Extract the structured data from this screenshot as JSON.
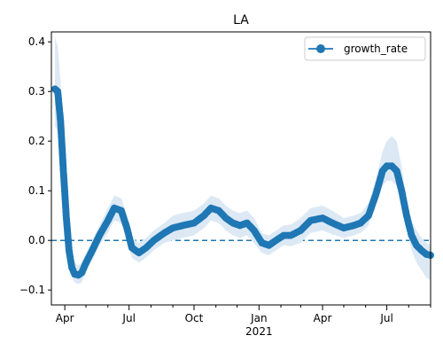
{
  "chart_data": {
    "type": "line",
    "title": "LA",
    "xlabel": "",
    "ylabel": "",
    "x_range": [
      "2020-03-13",
      "2021-09-01"
    ],
    "ylim": [
      -0.13,
      0.42
    ],
    "y_ticks": [
      -0.1,
      0.0,
      0.1,
      0.2,
      0.3,
      0.4
    ],
    "y_tick_labels": [
      "−0.1",
      "0.0",
      "0.1",
      "0.2",
      "0.3",
      "0.4"
    ],
    "x_ticks": [
      {
        "date": "2020-04-01",
        "label": "Apr"
      },
      {
        "date": "2020-07-01",
        "label": "Jul"
      },
      {
        "date": "2020-10-01",
        "label": "Oct"
      },
      {
        "date": "2021-01-01",
        "label": "Jan"
      },
      {
        "date": "2021-04-01",
        "label": "Apr"
      },
      {
        "date": "2021-07-01",
        "label": "Jul"
      }
    ],
    "x_year_label": {
      "date": "2021-01-01",
      "label": "2021"
    },
    "legend": {
      "placement": "top-right",
      "entries": [
        "growth_rate"
      ]
    },
    "grid": false,
    "reference_line": {
      "y": 0.0,
      "style": "dashed"
    },
    "series_color": "#1f77b4",
    "band_color": "#dce9f5",
    "series": [
      {
        "name": "growth_rate",
        "x": [
          "2020-03-18",
          "2020-03-22",
          "2020-03-26",
          "2020-03-30",
          "2020-04-03",
          "2020-04-07",
          "2020-04-11",
          "2020-04-15",
          "2020-04-20",
          "2020-04-25",
          "2020-05-01",
          "2020-05-10",
          "2020-05-20",
          "2020-06-01",
          "2020-06-10",
          "2020-06-20",
          "2020-06-28",
          "2020-07-05",
          "2020-07-15",
          "2020-07-25",
          "2020-08-05",
          "2020-08-20",
          "2020-09-01",
          "2020-09-15",
          "2020-10-01",
          "2020-10-15",
          "2020-10-25",
          "2020-11-05",
          "2020-11-15",
          "2020-11-25",
          "2020-12-05",
          "2020-12-15",
          "2020-12-25",
          "2021-01-05",
          "2021-01-15",
          "2021-01-25",
          "2021-02-05",
          "2021-02-15",
          "2021-03-01",
          "2021-03-15",
          "2021-04-01",
          "2021-04-15",
          "2021-05-01",
          "2021-05-15",
          "2021-05-25",
          "2021-06-05",
          "2021-06-15",
          "2021-06-25",
          "2021-07-01",
          "2021-07-08",
          "2021-07-15",
          "2021-07-22",
          "2021-07-29",
          "2021-08-05",
          "2021-08-12",
          "2021-08-19",
          "2021-08-26",
          "2021-09-01"
        ],
        "y": [
          0.305,
          0.3,
          0.24,
          0.14,
          0.05,
          -0.02,
          -0.055,
          -0.068,
          -0.07,
          -0.065,
          -0.045,
          -0.02,
          0.01,
          0.04,
          0.065,
          0.06,
          0.025,
          -0.015,
          -0.025,
          -0.015,
          0.0,
          0.015,
          0.025,
          0.03,
          0.035,
          0.05,
          0.065,
          0.06,
          0.045,
          0.035,
          0.03,
          0.035,
          0.02,
          -0.005,
          -0.01,
          0.0,
          0.01,
          0.01,
          0.02,
          0.04,
          0.045,
          0.035,
          0.025,
          0.03,
          0.035,
          0.05,
          0.09,
          0.14,
          0.15,
          0.15,
          0.14,
          0.1,
          0.05,
          0.01,
          -0.01,
          -0.02,
          -0.028,
          -0.03
        ],
        "lower": [
          0.23,
          0.22,
          0.17,
          0.09,
          0.02,
          -0.045,
          -0.075,
          -0.085,
          -0.088,
          -0.085,
          -0.065,
          -0.04,
          -0.01,
          0.015,
          0.04,
          0.035,
          0.0,
          -0.035,
          -0.045,
          -0.035,
          -0.02,
          -0.005,
          0.0,
          0.005,
          0.01,
          0.025,
          0.04,
          0.035,
          0.02,
          0.01,
          0.005,
          0.01,
          -0.005,
          -0.025,
          -0.03,
          -0.02,
          -0.01,
          -0.012,
          -0.005,
          0.015,
          0.02,
          0.012,
          0.005,
          0.01,
          0.015,
          0.03,
          0.07,
          0.11,
          0.12,
          0.12,
          0.11,
          0.07,
          0.025,
          -0.02,
          -0.045,
          -0.06,
          -0.075,
          -0.08
        ],
        "upper": [
          0.41,
          0.39,
          0.32,
          0.2,
          0.09,
          0.01,
          -0.03,
          -0.045,
          -0.05,
          -0.045,
          -0.025,
          0.0,
          0.03,
          0.065,
          0.09,
          0.085,
          0.05,
          0.005,
          -0.005,
          0.005,
          0.02,
          0.035,
          0.05,
          0.055,
          0.06,
          0.075,
          0.09,
          0.085,
          0.07,
          0.06,
          0.055,
          0.06,
          0.045,
          0.015,
          0.01,
          0.02,
          0.03,
          0.032,
          0.045,
          0.065,
          0.07,
          0.06,
          0.045,
          0.05,
          0.055,
          0.075,
          0.12,
          0.18,
          0.2,
          0.21,
          0.2,
          0.15,
          0.08,
          0.04,
          0.02,
          0.005,
          -0.005,
          -0.01
        ]
      }
    ]
  }
}
